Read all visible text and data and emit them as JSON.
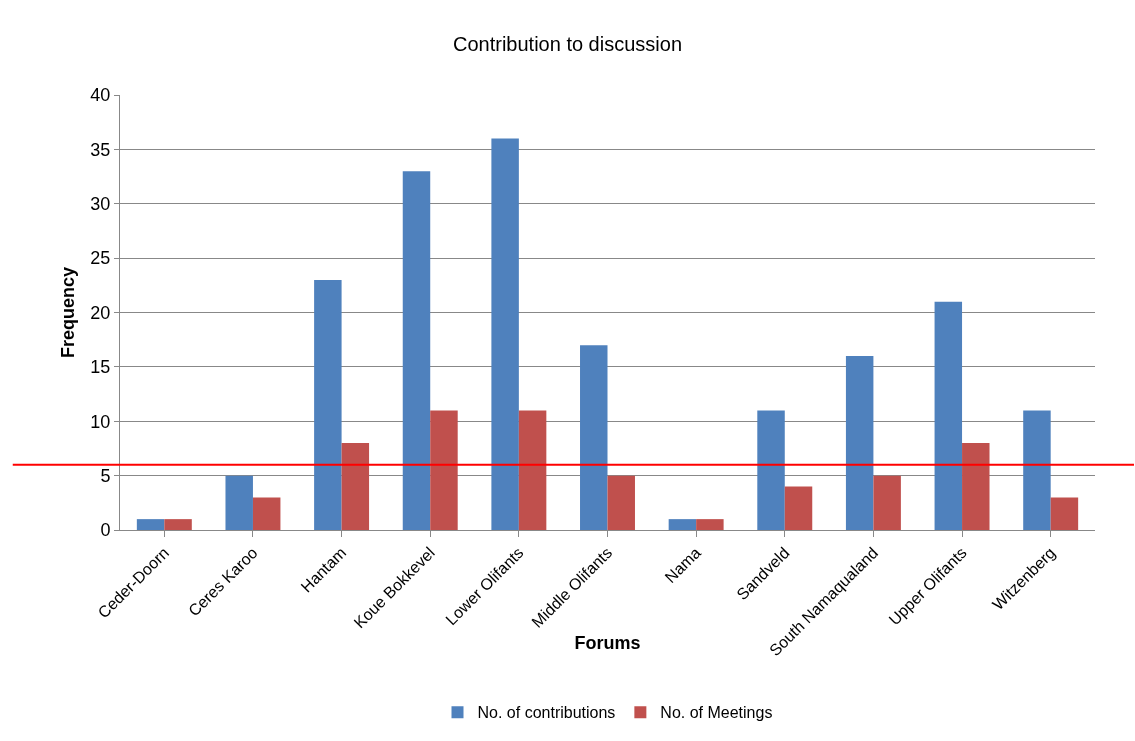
{
  "chart_data": {
    "type": "bar",
    "title": "Contribution to discussion",
    "xlabel": "Forums",
    "ylabel": "Frequency",
    "categories": [
      "Ceder-Doorn",
      "Ceres Karoo",
      "Hantam",
      "Koue Bokkevel",
      "Lower Olifants",
      "Middle Olifants",
      "Nama",
      "Sandveld",
      "South Namaqualand",
      "Upper Olifants",
      "Witzenberg"
    ],
    "series": [
      {
        "name": "No. of contributions",
        "color": "#4f81bd",
        "values": [
          1,
          5,
          23,
          33,
          36,
          17,
          1,
          11,
          16,
          21,
          11
        ]
      },
      {
        "name": "No. of Meetings",
        "color": "#c0504d",
        "values": [
          1,
          3,
          8,
          11,
          11,
          5,
          1,
          4,
          5,
          8,
          3
        ]
      }
    ],
    "ylim": [
      0,
      40
    ],
    "yticks": [
      0,
      5,
      10,
      15,
      20,
      25,
      30,
      35,
      40
    ],
    "grid": "y",
    "legend": "bottom",
    "ref_lines": [
      {
        "axis": "y",
        "value": 6,
        "color": "#ff0000"
      }
    ]
  }
}
